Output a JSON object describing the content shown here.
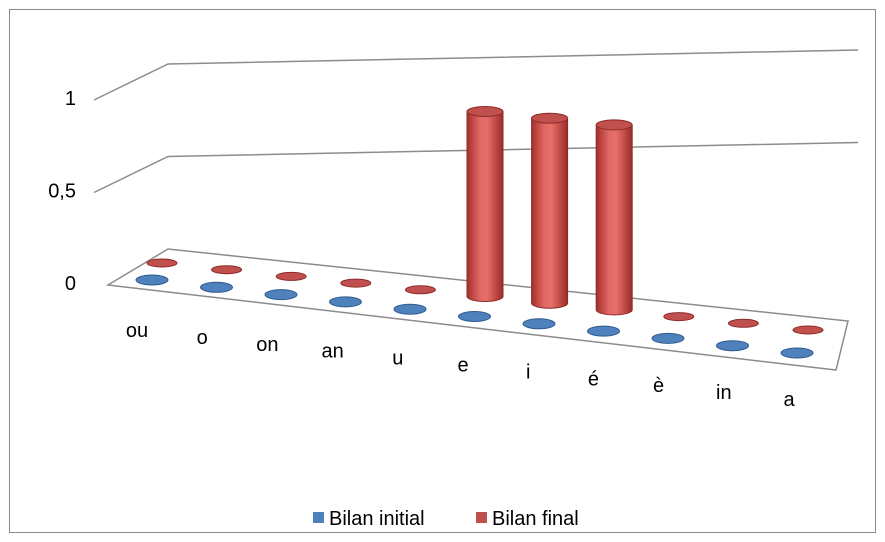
{
  "chart_data": {
    "type": "bar",
    "style": "3d-cylinder",
    "categories": [
      "ou",
      "o",
      "on",
      "an",
      "u",
      "e",
      "i",
      "é",
      "è",
      "in",
      "a"
    ],
    "series": [
      {
        "name": "Bilan initial",
        "color": "#4f81bd",
        "values": [
          0,
          0,
          0,
          0,
          0,
          0,
          0,
          0,
          0,
          0,
          0
        ]
      },
      {
        "name": "Bilan final",
        "color": "#c0504d",
        "values": [
          0,
          0,
          0,
          0,
          0,
          1,
          1,
          1,
          0,
          0,
          0
        ]
      }
    ],
    "y_ticks": [
      "0",
      "0,5",
      "1"
    ],
    "y_tick_values": [
      0,
      0.5,
      1
    ],
    "ylim": [
      0,
      1
    ],
    "grid": true,
    "legend_position": "bottom"
  }
}
